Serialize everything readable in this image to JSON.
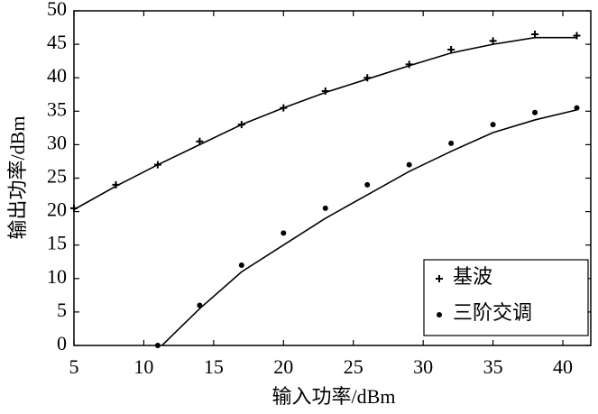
{
  "chart_data": {
    "type": "line",
    "xlabel": "输入功率/dBm",
    "ylabel": "输出功率/dBm",
    "xlim": [
      5,
      42
    ],
    "ylim": [
      0,
      50
    ],
    "xticks": [
      5,
      10,
      15,
      20,
      25,
      30,
      35,
      40
    ],
    "yticks": [
      0,
      5,
      10,
      15,
      20,
      25,
      30,
      35,
      40,
      45,
      50
    ],
    "legend": "lower right",
    "series": [
      {
        "name": "基波",
        "color": "#000000",
        "marker": "plus",
        "x": [
          5,
          8,
          11,
          14,
          17,
          20,
          23,
          26,
          29,
          32,
          35,
          38,
          41
        ],
        "values": [
          20.5,
          24,
          27,
          30.5,
          33,
          35.5,
          38,
          40,
          42,
          44.2,
          45.5,
          46.5,
          46.3
        ],
        "fit_x": [
          5,
          8,
          11,
          14,
          17,
          20,
          23,
          26,
          29,
          32,
          35,
          38,
          41
        ],
        "fit_values": [
          20.3,
          23.8,
          27,
          30,
          33,
          35.5,
          37.8,
          39.8,
          41.8,
          43.7,
          45,
          46,
          46
        ]
      },
      {
        "name": "三阶交调",
        "color": "#000000",
        "marker": "dot",
        "x": [
          11,
          14,
          17,
          20,
          23,
          26,
          29,
          32,
          35,
          38,
          41
        ],
        "values": [
          0,
          6,
          12,
          16.8,
          20.5,
          24,
          27,
          30.2,
          33,
          34.8,
          35.5
        ],
        "fit_x": [
          11.3,
          14,
          17,
          20,
          23,
          26,
          29,
          32,
          35,
          38,
          41
        ],
        "fit_values": [
          0,
          5.5,
          11,
          15,
          19,
          22.5,
          26,
          29,
          31.8,
          33.7,
          35.2
        ]
      }
    ]
  }
}
